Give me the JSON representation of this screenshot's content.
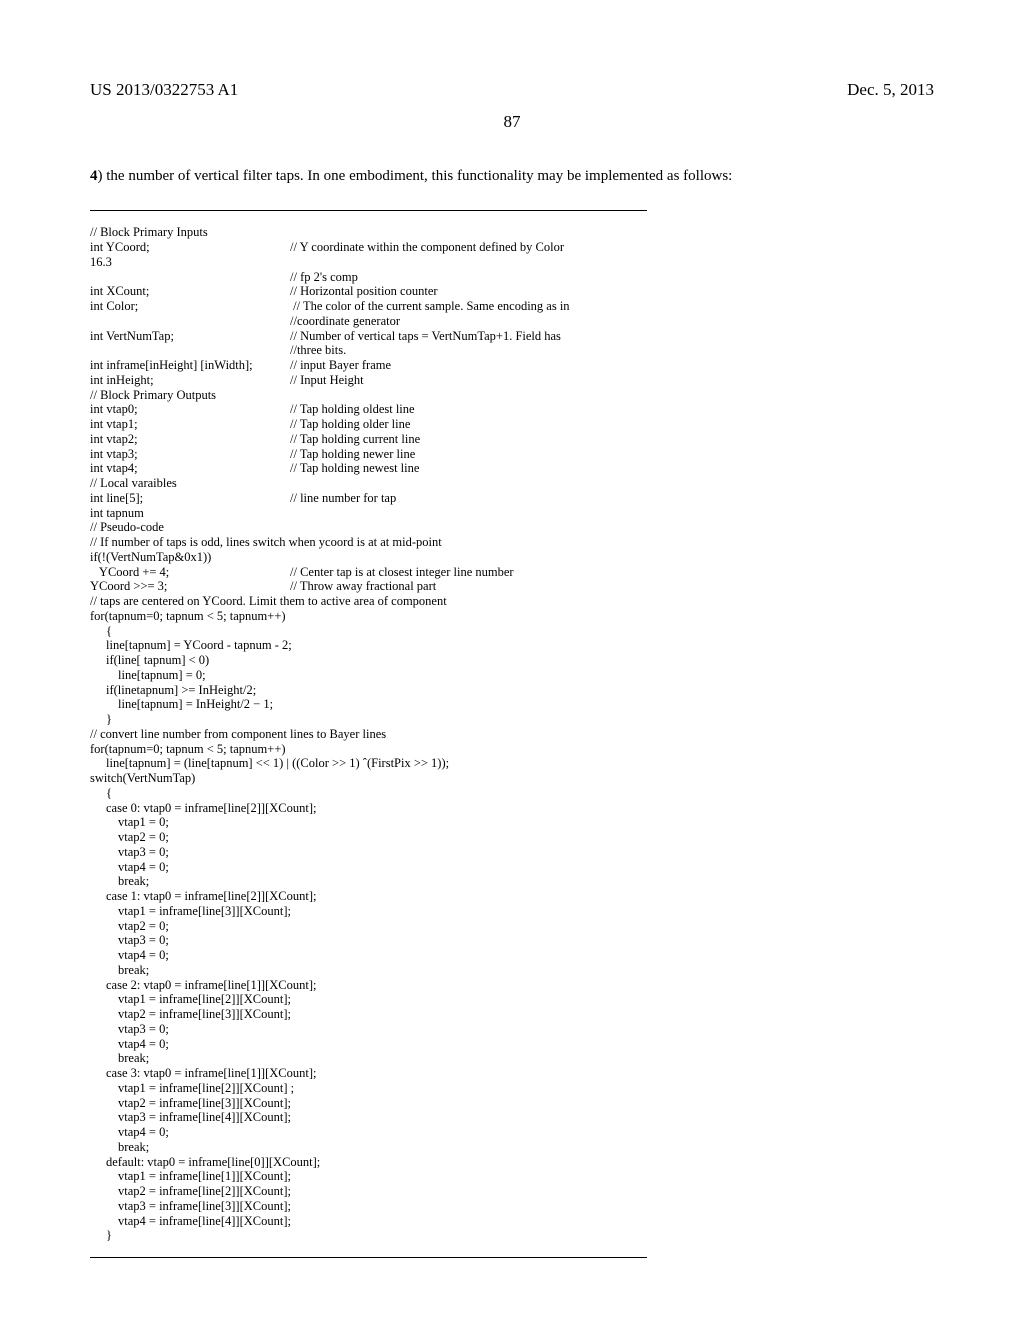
{
  "header": {
    "pub_number": "US 2013/0322753 A1",
    "pub_date": "Dec. 5, 2013",
    "page_number": "87"
  },
  "intro": {
    "ref_bold": "4",
    "text": ") the number of vertical filter taps. In one embodiment, this functionality may be implemented as follows:"
  },
  "code": {
    "lines": [
      {
        "t": "plain",
        "v": "// Block Primary Inputs"
      },
      {
        "t": "col",
        "l": "int YCoord;",
        "r": "// Y coordinate within the component defined by Color"
      },
      {
        "t": "plain",
        "v": "16.3"
      },
      {
        "t": "col",
        "l": "",
        "r": "// fp 2's comp"
      },
      {
        "t": "col",
        "l": "int XCount;",
        "r": "// Horizontal position counter"
      },
      {
        "t": "col",
        "l": "int Color;",
        "r": " // The color of the current sample. Same encoding as in"
      },
      {
        "t": "col",
        "l": "",
        "r": "//coordinate generator"
      },
      {
        "t": "col",
        "l": "int VertNumTap;",
        "r": "// Number of vertical taps = VertNumTap+1. Field has"
      },
      {
        "t": "col",
        "l": "",
        "r": "//three bits."
      },
      {
        "t": "col",
        "l": "int inframe[inHeight] [inWidth];",
        "r": "// input Bayer frame"
      },
      {
        "t": "col",
        "l": "int inHeight;",
        "r": "// Input Height"
      },
      {
        "t": "plain",
        "v": "// Block Primary Outputs"
      },
      {
        "t": "col",
        "l": "int vtap0;",
        "r": "// Tap holding oldest line"
      },
      {
        "t": "col",
        "l": "int vtap1;",
        "r": "// Tap holding older line"
      },
      {
        "t": "col",
        "l": "int vtap2;",
        "r": "// Tap holding current line"
      },
      {
        "t": "col",
        "l": "int vtap3;",
        "r": "// Tap holding newer line"
      },
      {
        "t": "col",
        "l": "int vtap4;",
        "r": "// Tap holding newest line"
      },
      {
        "t": "plain",
        "v": "// Local varaibles"
      },
      {
        "t": "col",
        "l": "int line[5];",
        "r": "// line number for tap"
      },
      {
        "t": "plain",
        "v": "int tapnum"
      },
      {
        "t": "plain",
        "v": "// Pseudo-code"
      },
      {
        "t": "plain",
        "v": "// If number of taps is odd, lines switch when ycoord is at at mid-point"
      },
      {
        "t": "plain",
        "v": "if(!(VertNumTap&0x1))"
      },
      {
        "t": "col",
        "l": "   YCoord += 4;",
        "r": "// Center tap is at closest integer line number"
      },
      {
        "t": "col",
        "l": "YCoord >>= 3;",
        "r": "// Throw away fractional part"
      },
      {
        "t": "plain",
        "v": "// taps are centered on YCoord. Limit them to active area of component"
      },
      {
        "t": "plain",
        "v": "for(tapnum=0; tapnum < 5; tapnum++)"
      },
      {
        "t": "plain",
        "i": 1,
        "v": "{"
      },
      {
        "t": "plain",
        "i": 1,
        "v": "line[tapnum] = YCoord - tapnum - 2;"
      },
      {
        "t": "plain",
        "i": 1,
        "v": "if(line[ tapnum] < 0)"
      },
      {
        "t": "plain",
        "i": 2,
        "v": "line[tapnum] = 0;"
      },
      {
        "t": "plain",
        "i": 1,
        "v": "if(linetapnum] >= InHeight/2;"
      },
      {
        "t": "plain",
        "i": 2,
        "v": "line[tapnum] = InHeight/2 − 1;"
      },
      {
        "t": "plain",
        "i": 1,
        "v": "}"
      },
      {
        "t": "plain",
        "v": "// convert line number from component lines to Bayer lines"
      },
      {
        "t": "plain",
        "v": "for(tapnum=0; tapnum < 5; tapnum++)"
      },
      {
        "t": "plain",
        "i": 1,
        "v": "line[tapnum] = (line[tapnum] << 1) | ((Color >> 1) ˆ(FirstPix >> 1));"
      },
      {
        "t": "plain",
        "v": "switch(VertNumTap)"
      },
      {
        "t": "plain",
        "i": 1,
        "v": "{"
      },
      {
        "t": "plain",
        "i": 1,
        "v": "case 0: vtap0 = inframe[line[2]][XCount];"
      },
      {
        "t": "plain",
        "i": 2,
        "v": "vtap1 = 0;"
      },
      {
        "t": "plain",
        "i": 2,
        "v": "vtap2 = 0;"
      },
      {
        "t": "plain",
        "i": 2,
        "v": "vtap3 = 0;"
      },
      {
        "t": "plain",
        "i": 2,
        "v": "vtap4 = 0;"
      },
      {
        "t": "plain",
        "i": 2,
        "v": "break;"
      },
      {
        "t": "plain",
        "i": 1,
        "v": "case 1: vtap0 = inframe[line[2]][XCount];"
      },
      {
        "t": "plain",
        "i": 2,
        "v": "vtap1 = inframe[line[3]][XCount];"
      },
      {
        "t": "plain",
        "i": 2,
        "v": "vtap2 = 0;"
      },
      {
        "t": "plain",
        "i": 2,
        "v": "vtap3 = 0;"
      },
      {
        "t": "plain",
        "i": 2,
        "v": "vtap4 = 0;"
      },
      {
        "t": "plain",
        "i": 2,
        "v": "break;"
      },
      {
        "t": "plain",
        "i": 1,
        "v": "case 2: vtap0 = inframe[line[1]][XCount];"
      },
      {
        "t": "plain",
        "i": 2,
        "v": "vtap1 = inframe[line[2]][XCount];"
      },
      {
        "t": "plain",
        "i": 2,
        "v": "vtap2 = inframe[line[3]][XCount];"
      },
      {
        "t": "plain",
        "i": 2,
        "v": "vtap3 = 0;"
      },
      {
        "t": "plain",
        "i": 2,
        "v": "vtap4 = 0;"
      },
      {
        "t": "plain",
        "i": 2,
        "v": "break;"
      },
      {
        "t": "plain",
        "i": 1,
        "v": "case 3: vtap0 = inframe[line[1]][XCount];"
      },
      {
        "t": "plain",
        "i": 2,
        "v": "vtap1 = inframe[line[2]][XCount] ;"
      },
      {
        "t": "plain",
        "i": 2,
        "v": "vtap2 = inframe[line[3]][XCount];"
      },
      {
        "t": "plain",
        "i": 2,
        "v": "vtap3 = inframe[line[4]][XCount];"
      },
      {
        "t": "plain",
        "i": 2,
        "v": "vtap4 = 0;"
      },
      {
        "t": "plain",
        "i": 2,
        "v": "break;"
      },
      {
        "t": "plain",
        "i": 1,
        "v": "default: vtap0 = inframe[line[0]][XCount];"
      },
      {
        "t": "plain",
        "i": 2,
        "v": "vtap1 = inframe[line[1]][XCount];"
      },
      {
        "t": "plain",
        "i": 2,
        "v": "vtap2 = inframe[line[2]][XCount];"
      },
      {
        "t": "plain",
        "i": 2,
        "v": "vtap3 = inframe[line[3]][XCount];"
      },
      {
        "t": "plain",
        "i": 2,
        "v": "vtap4 = inframe[line[4]][XCount];"
      },
      {
        "t": "plain",
        "i": 1,
        "v": "}"
      }
    ]
  }
}
